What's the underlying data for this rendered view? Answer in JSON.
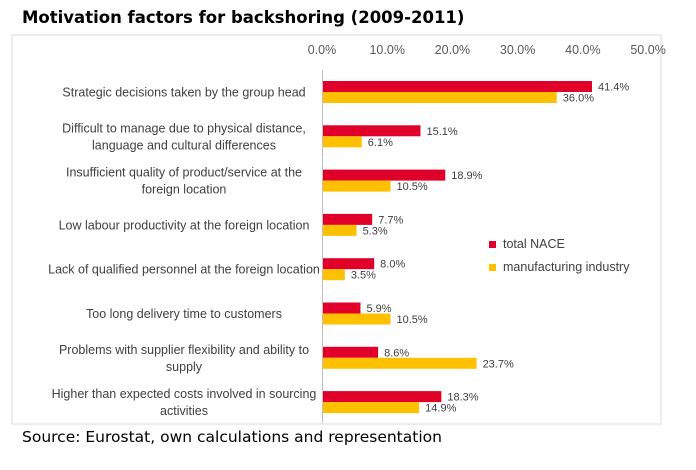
{
  "chart_data": {
    "type": "bar",
    "orientation": "horizontal",
    "title": "Motivation factors for backshoring (2009-2011)",
    "source": "Source: Eurostat, own calculations and representation",
    "categories": [
      [
        "Strategic decisions taken by the group head"
      ],
      [
        "Difficult to manage due to physical distance,",
        "language and cultural differences"
      ],
      [
        "Insufficient quality of product/service at the",
        "foreign location"
      ],
      [
        "Low labour productivity at the foreign location"
      ],
      [
        "Lack of qualified personnel at the foreign location"
      ],
      [
        "Too long delivery time to customers"
      ],
      [
        "Problems with supplier flexibility and ability to",
        "supply"
      ],
      [
        "Higher than expected costs involved in sourcing",
        "activities"
      ]
    ],
    "series": [
      {
        "name": "total NACE",
        "color": "#e0002a",
        "values": [
          41.4,
          15.1,
          18.9,
          7.7,
          8.0,
          5.9,
          8.6,
          18.3
        ],
        "labels": [
          "41.4%",
          "15.1%",
          "18.9%",
          "7.7%",
          "8.0%",
          "5.9%",
          "8.6%",
          "18.3%"
        ]
      },
      {
        "name": "manufacturing industry",
        "color": "#ffc000",
        "values": [
          36.0,
          6.1,
          10.5,
          5.3,
          3.5,
          10.5,
          23.7,
          14.9
        ],
        "labels": [
          "36.0%",
          "6.1%",
          "10.5%",
          "5.3%",
          "3.5%",
          "10.5%",
          "23.7%",
          "14.9%"
        ]
      }
    ],
    "xlim": [
      0,
      50
    ],
    "xticks": [
      "0.0%",
      "10.0%",
      "20.0%",
      "30.0%",
      "40.0%",
      "50.0%"
    ],
    "x_axis_position": "top",
    "legend_position": "right",
    "grid": false
  }
}
